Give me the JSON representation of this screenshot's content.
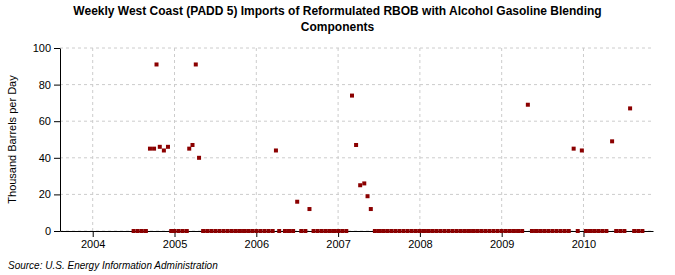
{
  "chart_data": {
    "type": "scatter",
    "title": "Weekly West Coast (PADD 5) Imports of Reformulated RBOB with Alcohol Gasoline Blending\nComponents",
    "ylabel": "Thousand Barrels per Day",
    "annotations": [
      "Source: U.S. Energy Information Administration"
    ],
    "color": "#8b0000",
    "marker": "square",
    "grid": true,
    "xlim": [
      2003.6,
      2010.85
    ],
    "xticks": [
      2004,
      2005,
      2006,
      2007,
      2008,
      2009,
      2010
    ],
    "ylim": [
      0,
      100
    ],
    "yticks": [
      0,
      20,
      40,
      60,
      80,
      100
    ],
    "x": [
      2004.5,
      2004.55,
      2004.6,
      2004.65,
      2004.7,
      2004.75,
      2004.78,
      2004.82,
      2004.87,
      2004.92,
      2004.96,
      2005.0,
      2005.05,
      2005.1,
      2005.15,
      2005.18,
      2005.22,
      2005.26,
      2005.3,
      2005.35,
      2005.4,
      2005.45,
      2005.5,
      2005.55,
      2005.6,
      2005.65,
      2005.7,
      2005.75,
      2005.8,
      2005.85,
      2005.9,
      2005.95,
      2006.0,
      2006.05,
      2006.1,
      2006.15,
      2006.2,
      2006.24,
      2006.28,
      2006.35,
      2006.4,
      2006.45,
      2006.5,
      2006.55,
      2006.6,
      2006.65,
      2006.7,
      2006.75,
      2006.8,
      2006.85,
      2006.9,
      2006.95,
      2007.0,
      2007.05,
      2007.1,
      2007.17,
      2007.22,
      2007.27,
      2007.32,
      2007.36,
      2007.4,
      2007.45,
      2007.5,
      2007.55,
      2007.6,
      2007.65,
      2007.7,
      2007.75,
      2007.8,
      2007.85,
      2007.9,
      2007.95,
      2008.0,
      2008.05,
      2008.1,
      2008.15,
      2008.2,
      2008.25,
      2008.3,
      2008.35,
      2008.4,
      2008.45,
      2008.5,
      2008.55,
      2008.6,
      2008.65,
      2008.7,
      2008.75,
      2008.8,
      2008.85,
      2008.9,
      2008.95,
      2009.0,
      2009.05,
      2009.1,
      2009.15,
      2009.2,
      2009.25,
      2009.32,
      2009.37,
      2009.42,
      2009.47,
      2009.52,
      2009.57,
      2009.62,
      2009.67,
      2009.72,
      2009.77,
      2009.82,
      2009.88,
      2009.93,
      2009.98,
      2010.03,
      2010.08,
      2010.13,
      2010.18,
      2010.23,
      2010.28,
      2010.35,
      2010.4,
      2010.45,
      2010.5,
      2010.57,
      2010.62,
      2010.67,
      2010.72
    ],
    "values": [
      0,
      0,
      0,
      0,
      45,
      45,
      91,
      46,
      44,
      46,
      0,
      0,
      0,
      0,
      0,
      45,
      47,
      91,
      40,
      0,
      0,
      0,
      0,
      0,
      0,
      0,
      0,
      0,
      0,
      0,
      0,
      0,
      0,
      0,
      0,
      0,
      0,
      44,
      0,
      0,
      0,
      0,
      16,
      0,
      0,
      12,
      0,
      0,
      0,
      0,
      0,
      0,
      0,
      0,
      0,
      74,
      47,
      25,
      26,
      19,
      12,
      0,
      0,
      0,
      0,
      0,
      0,
      0,
      0,
      0,
      0,
      0,
      0,
      0,
      0,
      0,
      0,
      0,
      0,
      0,
      0,
      0,
      0,
      0,
      0,
      0,
      0,
      0,
      0,
      0,
      0,
      0,
      0,
      0,
      0,
      0,
      0,
      0,
      69,
      0,
      0,
      0,
      0,
      0,
      0,
      0,
      0,
      0,
      0,
      45,
      0,
      44,
      0,
      0,
      0,
      0,
      0,
      0,
      49,
      0,
      0,
      0,
      67,
      0,
      0,
      0
    ]
  }
}
